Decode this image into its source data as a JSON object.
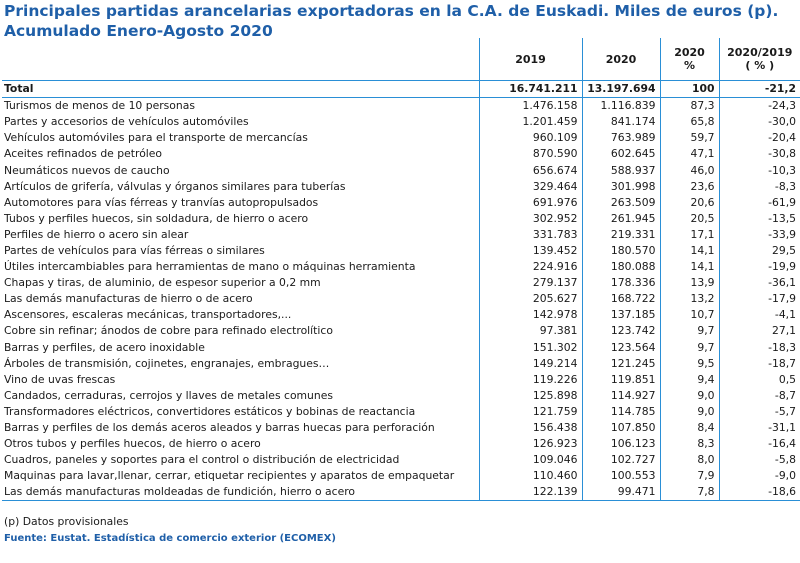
{
  "title_line1": "Principales partidas arancelarias exportadoras en la C.A. de Euskadi. Miles de euros (p).",
  "title_line2": "Acumulado Enero-Agosto 2020",
  "headers": {
    "col_2019": "2019",
    "col_2020": "2020",
    "col_pct": "2020\n%",
    "col_var": "2020/2019\n( % )"
  },
  "total": {
    "name": "Total",
    "v2019": "16.741.211",
    "v2020": "13.197.694",
    "pct": "100",
    "var": "-21,2"
  },
  "rows": [
    {
      "name": "Turismos de menos de  10 personas",
      "v2019": "1.476.158",
      "v2020": "1.116.839",
      "pct": "87,3",
      "var": "-24,3"
    },
    {
      "name": "Partes y accesorios de vehículos automóviles",
      "v2019": "1.201.459",
      "v2020": "841.174",
      "pct": "65,8",
      "var": "-30,0"
    },
    {
      "name": "Vehículos automóviles para el transporte de mercancías",
      "v2019": "960.109",
      "v2020": "763.989",
      "pct": "59,7",
      "var": "-20,4"
    },
    {
      "name": "Aceites refinados de petróleo",
      "v2019": "870.590",
      "v2020": "602.645",
      "pct": "47,1",
      "var": "-30,8"
    },
    {
      "name": "Neumáticos nuevos de caucho",
      "v2019": "656.674",
      "v2020": "588.937",
      "pct": "46,0",
      "var": "-10,3"
    },
    {
      "name": "Artículos de grifería, válvulas y órganos similares para tuberías",
      "v2019": "329.464",
      "v2020": "301.998",
      "pct": "23,6",
      "var": "-8,3"
    },
    {
      "name": "Automotores para vías férreas y tranvías autopropulsados",
      "v2019": "691.976",
      "v2020": "263.509",
      "pct": "20,6",
      "var": "-61,9"
    },
    {
      "name": "Tubos y perfiles huecos, sin soldadura, de hierro o acero",
      "v2019": "302.952",
      "v2020": "261.945",
      "pct": "20,5",
      "var": "-13,5"
    },
    {
      "name": "Perfiles de hierro o acero sin alear",
      "v2019": "331.783",
      "v2020": "219.331",
      "pct": "17,1",
      "var": "-33,9"
    },
    {
      "name": "Partes de vehículos para vías férreas o similares",
      "v2019": "139.452",
      "v2020": "180.570",
      "pct": "14,1",
      "var": "29,5"
    },
    {
      "name": "Útiles intercambiables para herramientas de mano o máquinas herramienta",
      "v2019": "224.916",
      "v2020": "180.088",
      "pct": "14,1",
      "var": "-19,9"
    },
    {
      "name": "Chapas y tiras, de aluminio, de espesor superior a 0,2 mm",
      "v2019": "279.137",
      "v2020": "178.336",
      "pct": "13,9",
      "var": "-36,1"
    },
    {
      "name": "Las demás manufacturas de hierro o de acero",
      "v2019": "205.627",
      "v2020": "168.722",
      "pct": "13,2",
      "var": "-17,9"
    },
    {
      "name": "Ascensores, escaleras mecánicas, transportadores,...",
      "v2019": "142.978",
      "v2020": "137.185",
      "pct": "10,7",
      "var": "-4,1"
    },
    {
      "name": "Cobre sin refinar; ánodos de cobre para refinado electrolítico",
      "v2019": "97.381",
      "v2020": "123.742",
      "pct": "9,7",
      "var": "27,1"
    },
    {
      "name": "Barras y perfiles, de acero inoxidable",
      "v2019": "151.302",
      "v2020": "123.564",
      "pct": "9,7",
      "var": "-18,3"
    },
    {
      "name": "Árboles de transmisión, cojinetes, engranajes, embragues…",
      "v2019": "149.214",
      "v2020": "121.245",
      "pct": "9,5",
      "var": "-18,7"
    },
    {
      "name": "Vino de uvas frescas",
      "v2019": "119.226",
      "v2020": "119.851",
      "pct": "9,4",
      "var": "0,5"
    },
    {
      "name": "Candados, cerraduras, cerrojos y llaves de metales comunes",
      "v2019": "125.898",
      "v2020": "114.927",
      "pct": "9,0",
      "var": "-8,7"
    },
    {
      "name": "Transformadores eléctricos, convertidores estáticos y bobinas de reactancia",
      "v2019": "121.759",
      "v2020": "114.785",
      "pct": "9,0",
      "var": "-5,7"
    },
    {
      "name": "Barras y perfiles de los demás aceros aleados y barras huecas para perforación",
      "v2019": "156.438",
      "v2020": "107.850",
      "pct": "8,4",
      "var": "-31,1"
    },
    {
      "name": "Otros tubos y perfiles huecos, de hierro o acero",
      "v2019": "126.923",
      "v2020": "106.123",
      "pct": "8,3",
      "var": "-16,4"
    },
    {
      "name": "Cuadros, paneles y soportes para el control o distribución de electricidad",
      "v2019": "109.046",
      "v2020": "102.727",
      "pct": "8,0",
      "var": "-5,8"
    },
    {
      "name": "Maquinas para lavar,llenar, cerrar, etiquetar recipientes  y aparatos de empaquetar",
      "v2019": "110.460",
      "v2020": "100.553",
      "pct": "7,9",
      "var": "-9,0"
    },
    {
      "name": "Las demás manufacturas moldeadas de fundición, hierro o acero",
      "v2019": "122.139",
      "v2020": "99.471",
      "pct": "7,8",
      "var": "-18,6"
    }
  ],
  "note": "(p) Datos provisionales",
  "source": "Fuente: Eustat. Estadística de comercio exterior (ECOMEX)"
}
